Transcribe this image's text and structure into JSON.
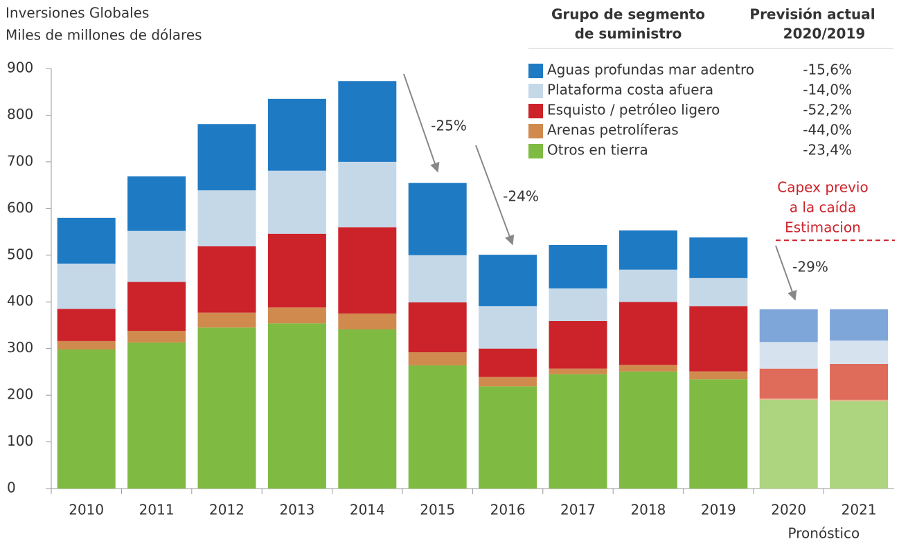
{
  "chart_data": {
    "type": "stacked_bar",
    "title": [
      "Inversiones Globales",
      "Miles de millones de dólares"
    ],
    "categories": [
      "2010",
      "2011",
      "2012",
      "2013",
      "2014",
      "2015",
      "2016",
      "2017",
      "2018",
      "2019",
      "2020",
      "2021"
    ],
    "series": [
      {
        "name": "Otros en tierra",
        "color": "#7fba42",
        "forecast_color": "#add47f",
        "change_label": "-23,4%",
        "values": [
          298,
          313,
          345,
          354,
          341,
          264,
          219,
          245,
          251,
          234,
          190,
          187
        ]
      },
      {
        "name": "Arenas petrolíferas",
        "color": "#d08a4e",
        "forecast_color": "#e3b58c",
        "change_label": "-44,0%",
        "values": [
          18,
          25,
          32,
          34,
          34,
          28,
          20,
          12,
          14,
          17,
          3,
          3
        ]
      },
      {
        "name": "Esquisto / petróleo ligero",
        "color": "#cc2229",
        "forecast_color": "#df6b5a",
        "change_label": "-52,2%",
        "values": [
          69,
          105,
          142,
          158,
          185,
          107,
          61,
          102,
          135,
          140,
          64,
          77
        ]
      },
      {
        "name": "Plataforma costa afuera",
        "color": "#c5d8e8",
        "forecast_color": "#d6e3ee",
        "change_label": "-14,0%",
        "values": [
          97,
          109,
          120,
          135,
          140,
          101,
          91,
          70,
          69,
          60,
          57,
          50
        ]
      },
      {
        "name": "Aguas profundas mar adentro",
        "color": "#1f7ac4",
        "forecast_color": "#7fa6d9",
        "change_label": "-15,6%",
        "values": [
          98,
          117,
          142,
          154,
          173,
          155,
          110,
          93,
          84,
          87,
          70,
          67
        ]
      }
    ],
    "legend_headers": [
      [
        "Grupo de segmento",
        "de suministro"
      ],
      [
        "Previsión actual",
        "2020/2019"
      ]
    ],
    "forecast": {
      "label": "Pronóstico",
      "from": "2020"
    },
    "ylim": [
      0,
      900
    ],
    "yticks": [
      0,
      100,
      200,
      300,
      400,
      500,
      600,
      700,
      800,
      900
    ],
    "arrow_labels": [
      "-25%",
      "-24%",
      "-29%"
    ],
    "reference_line": {
      "value": 532,
      "color": "#cc2229",
      "label": [
        "Capex previo",
        "a la caída",
        "Estimacion"
      ]
    }
  }
}
